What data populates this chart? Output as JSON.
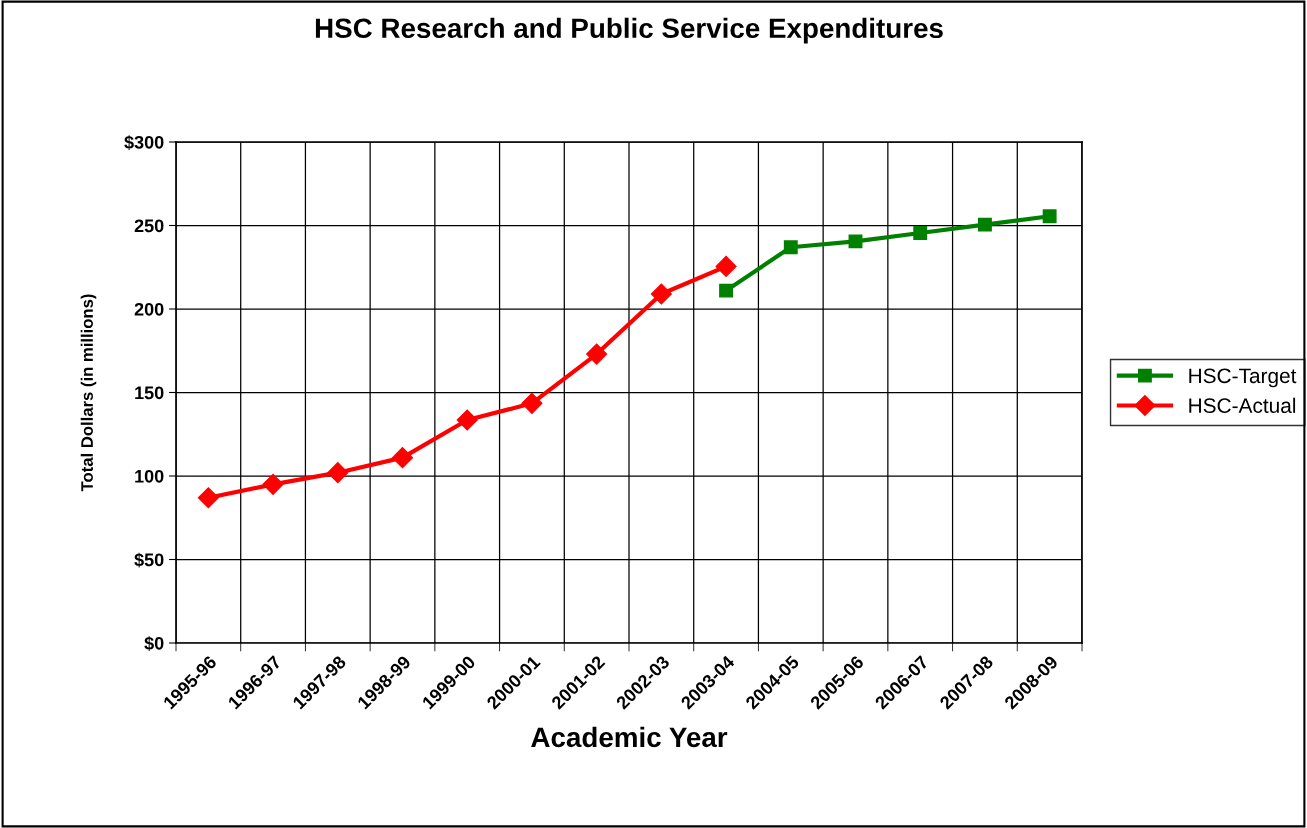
{
  "chart_data": {
    "type": "line",
    "title": "HSC Research and Public Service Expenditures",
    "xlabel": "Academic Year",
    "ylabel": "Total Dollars (in millions)",
    "categories": [
      "1995-96",
      "1996-97",
      "1997-98",
      "1998-99",
      "1999-00",
      "2000-01",
      "2001-02",
      "2002-03",
      "2003-04",
      "2004-05",
      "2005-06",
      "2006-07",
      "2007-08",
      "2008-09"
    ],
    "series": [
      {
        "name": "HSC-Target",
        "color": "#008000",
        "marker": "square",
        "values": [
          null,
          null,
          null,
          null,
          null,
          null,
          null,
          null,
          211,
          237,
          240.5,
          245.5,
          250.5,
          255.5
        ]
      },
      {
        "name": "HSC-Actual",
        "color": "#ff0000",
        "marker": "diamond",
        "values": [
          87,
          95,
          102,
          111,
          133.5,
          143.5,
          173,
          209,
          225.5,
          null,
          null,
          null,
          null,
          null
        ]
      }
    ],
    "ylim": [
      0,
      300
    ],
    "yticks": [
      {
        "value": 0,
        "label": "$0"
      },
      {
        "value": 50,
        "label": "$50"
      },
      100,
      150,
      200,
      250,
      {
        "value": 300,
        "label": "$300"
      }
    ],
    "grid": true,
    "legend": "right",
    "line_style": "solid"
  }
}
